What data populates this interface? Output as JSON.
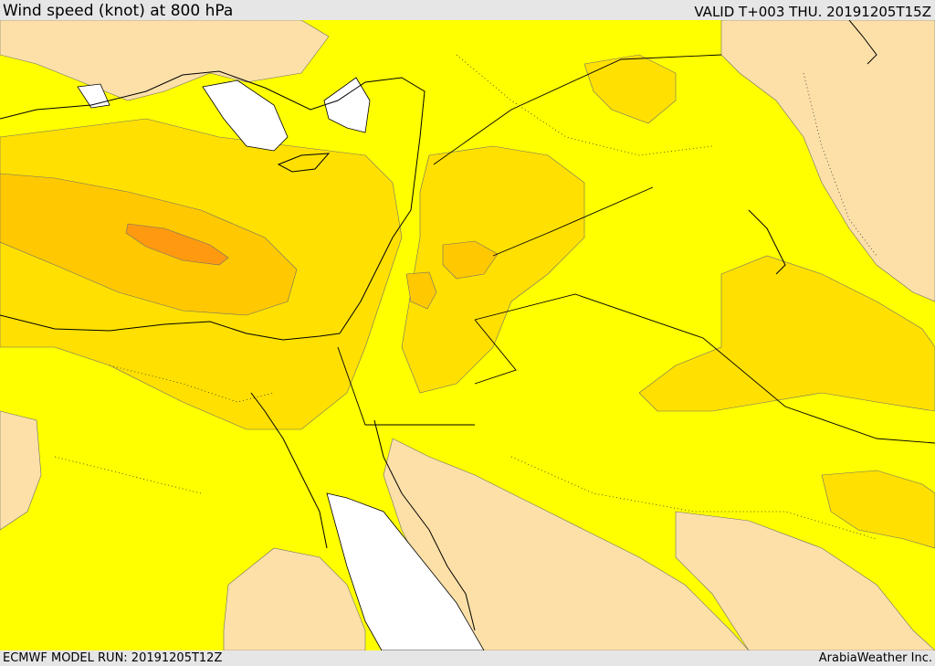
{
  "header": {
    "title": "Wind speed (knot) at 800 hPa",
    "valid": "VALID T+003 THU. 20191205T15Z"
  },
  "footer": {
    "model_run": "ECMWF MODEL RUN: 20191205T12Z",
    "credit": "ArabiaWeather Inc."
  },
  "map": {
    "region": "Eastern Mediterranean / Middle East",
    "colors": {
      "sea_no_data": "#ffffff",
      "light_peach": "#fde0a8",
      "yellow": "#ffff00",
      "gold": "#ffe000",
      "amber": "#ffc800",
      "orange": "#ffb000",
      "dark_orange": "#ff9a10",
      "coast": "#000000"
    }
  }
}
